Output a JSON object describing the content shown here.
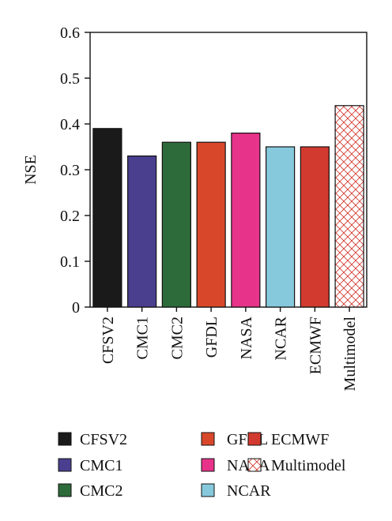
{
  "chart_data": {
    "type": "bar",
    "ylabel": "NSE",
    "ylim": [
      0,
      0.6
    ],
    "yticks": [
      "0",
      "0.1",
      "0.2",
      "0.3",
      "0.4",
      "0.5",
      "0.6"
    ],
    "categories": [
      "CFSV2",
      "CMC1",
      "CMC2",
      "GFDL",
      "NASA",
      "NCAR",
      "ECMWF",
      "Multimodel"
    ],
    "values": [
      0.39,
      0.33,
      0.36,
      0.36,
      0.38,
      0.35,
      0.35,
      0.44
    ],
    "colors": [
      "#1a1a1a",
      "#4a3f8f",
      "#2e6b3a",
      "#d9472b",
      "#e8338a",
      "#86c9dc",
      "#d33a2f",
      "hatch-red"
    ],
    "legend": {
      "placement": "bottom",
      "columns": [
        [
          "CFSV2",
          "CMC1",
          "CMC2"
        ],
        [
          "GFDL",
          "NASA",
          "NCAR"
        ],
        [
          "ECMWF",
          "Multimodel"
        ]
      ]
    }
  }
}
